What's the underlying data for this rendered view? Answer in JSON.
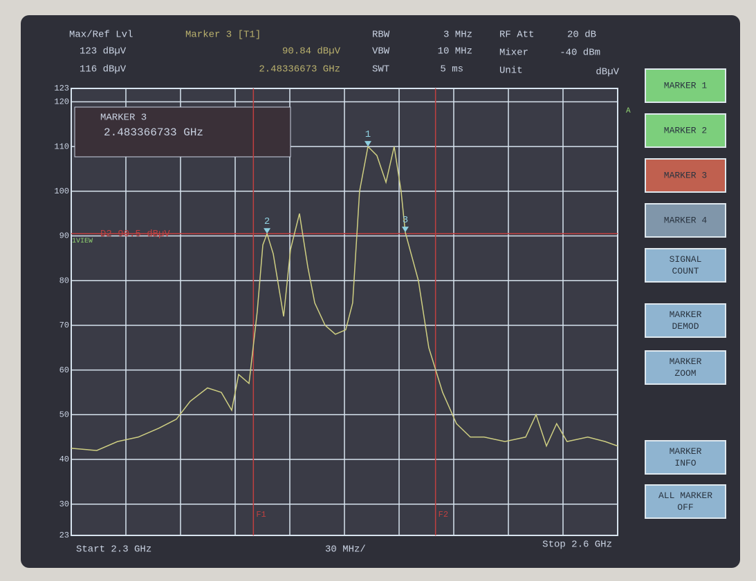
{
  "header": {
    "ref_label": "Max/Ref Lvl",
    "ref_level": "123 dBµV",
    "ref_level2": "116 dBµV",
    "marker_label": "Marker 3 [T1]",
    "marker_level": "90.84 dBµV",
    "marker_freq": "2.48336673 GHz",
    "rbw_label": "RBW",
    "rbw": "3 MHz",
    "vbw_label": "VBW",
    "vbw": "10 MHz",
    "swt_label": "SWT",
    "swt": "5 ms",
    "att_label": "RF Att",
    "att": "20 dB",
    "mixer_label": "Mixer",
    "mixer": "-40 dBm",
    "unit_label": "Unit",
    "unit": "dBµV"
  },
  "marker_box": {
    "title": "MARKER 3",
    "freq": "2.483366733 GHz"
  },
  "chart_data": {
    "type": "line",
    "ylim": [
      23,
      123
    ],
    "yticks": [
      123,
      120,
      110,
      100,
      90,
      80,
      70,
      60,
      50,
      40,
      30,
      23
    ],
    "xlim": [
      2.3,
      2.6
    ],
    "grid": true,
    "color": "#cfcf82",
    "x": [
      2.3,
      2.314,
      2.3254,
      2.3368,
      2.3482,
      2.3577,
      2.3653,
      2.3748,
      2.3824,
      2.3881,
      2.3919,
      2.3976,
      2.4021,
      2.4052,
      2.4075,
      2.4109,
      2.4166,
      2.4204,
      2.4253,
      2.4299,
      2.4337,
      2.4394,
      2.445,
      2.4507,
      2.4545,
      2.4583,
      2.4629,
      2.4678,
      2.4728,
      2.4773,
      2.4811,
      2.4834,
      2.4906,
      2.4963,
      2.5039,
      2.5115,
      2.5191,
      2.5267,
      2.5381,
      2.5495,
      2.5552,
      2.5609,
      2.5665,
      2.5722,
      2.5836,
      2.5931,
      2.6
    ],
    "values": [
      42.5,
      42,
      44,
      45,
      47,
      49,
      53,
      56,
      55,
      51,
      59,
      57,
      73,
      88,
      90.5,
      86,
      72,
      87,
      95,
      83,
      75,
      70,
      68,
      69,
      75,
      100,
      110,
      108,
      102,
      110,
      100,
      90.8,
      80,
      65,
      55,
      48,
      45,
      45,
      44,
      45,
      50,
      43,
      48,
      44,
      45,
      44,
      43
    ],
    "markers": [
      {
        "label": "1",
        "x": 2.4629,
        "y": 110
      },
      {
        "label": "2",
        "x": 2.4075,
        "y": 90.5
      },
      {
        "label": "3",
        "x": 2.4834,
        "y": 90.84
      }
    ],
    "display_line": {
      "label": "D2 90.5 dBµV",
      "value": 90.5
    },
    "freq_lines": [
      {
        "label": "F1",
        "value": 2.4
      },
      {
        "label": "F2",
        "value": 2.5
      }
    ],
    "trace_label": "A",
    "view_label": "1VIEW"
  },
  "softkeys": [
    {
      "lines": [
        "MARKER 1"
      ],
      "color": "#7ccf7c"
    },
    {
      "lines": [
        "MARKER 2"
      ],
      "color": "#7ccf7c"
    },
    {
      "lines": [
        "MARKER 3"
      ],
      "color": "#c0604f"
    },
    {
      "lines": [
        "MARKER 4"
      ],
      "color": "#8096aa"
    },
    {
      "lines": [
        "SIGNAL",
        "COUNT"
      ],
      "color": "#8fb4d0"
    },
    {
      "lines": [
        "MARKER",
        "DEMOD"
      ],
      "color": "#8fb4d0"
    },
    {
      "lines": [
        "MARKER",
        "ZOOM"
      ],
      "color": "#8fb4d0"
    },
    {
      "lines": [
        "MARKER",
        "INFO"
      ],
      "color": "#8fb4d0"
    },
    {
      "lines": [
        "ALL MARKER",
        "OFF"
      ],
      "color": "#8fb4d0"
    }
  ],
  "footer": {
    "start": "Start 2.3 GHz",
    "span": "30 MHz/",
    "stop": "Stop 2.6 GHz"
  }
}
